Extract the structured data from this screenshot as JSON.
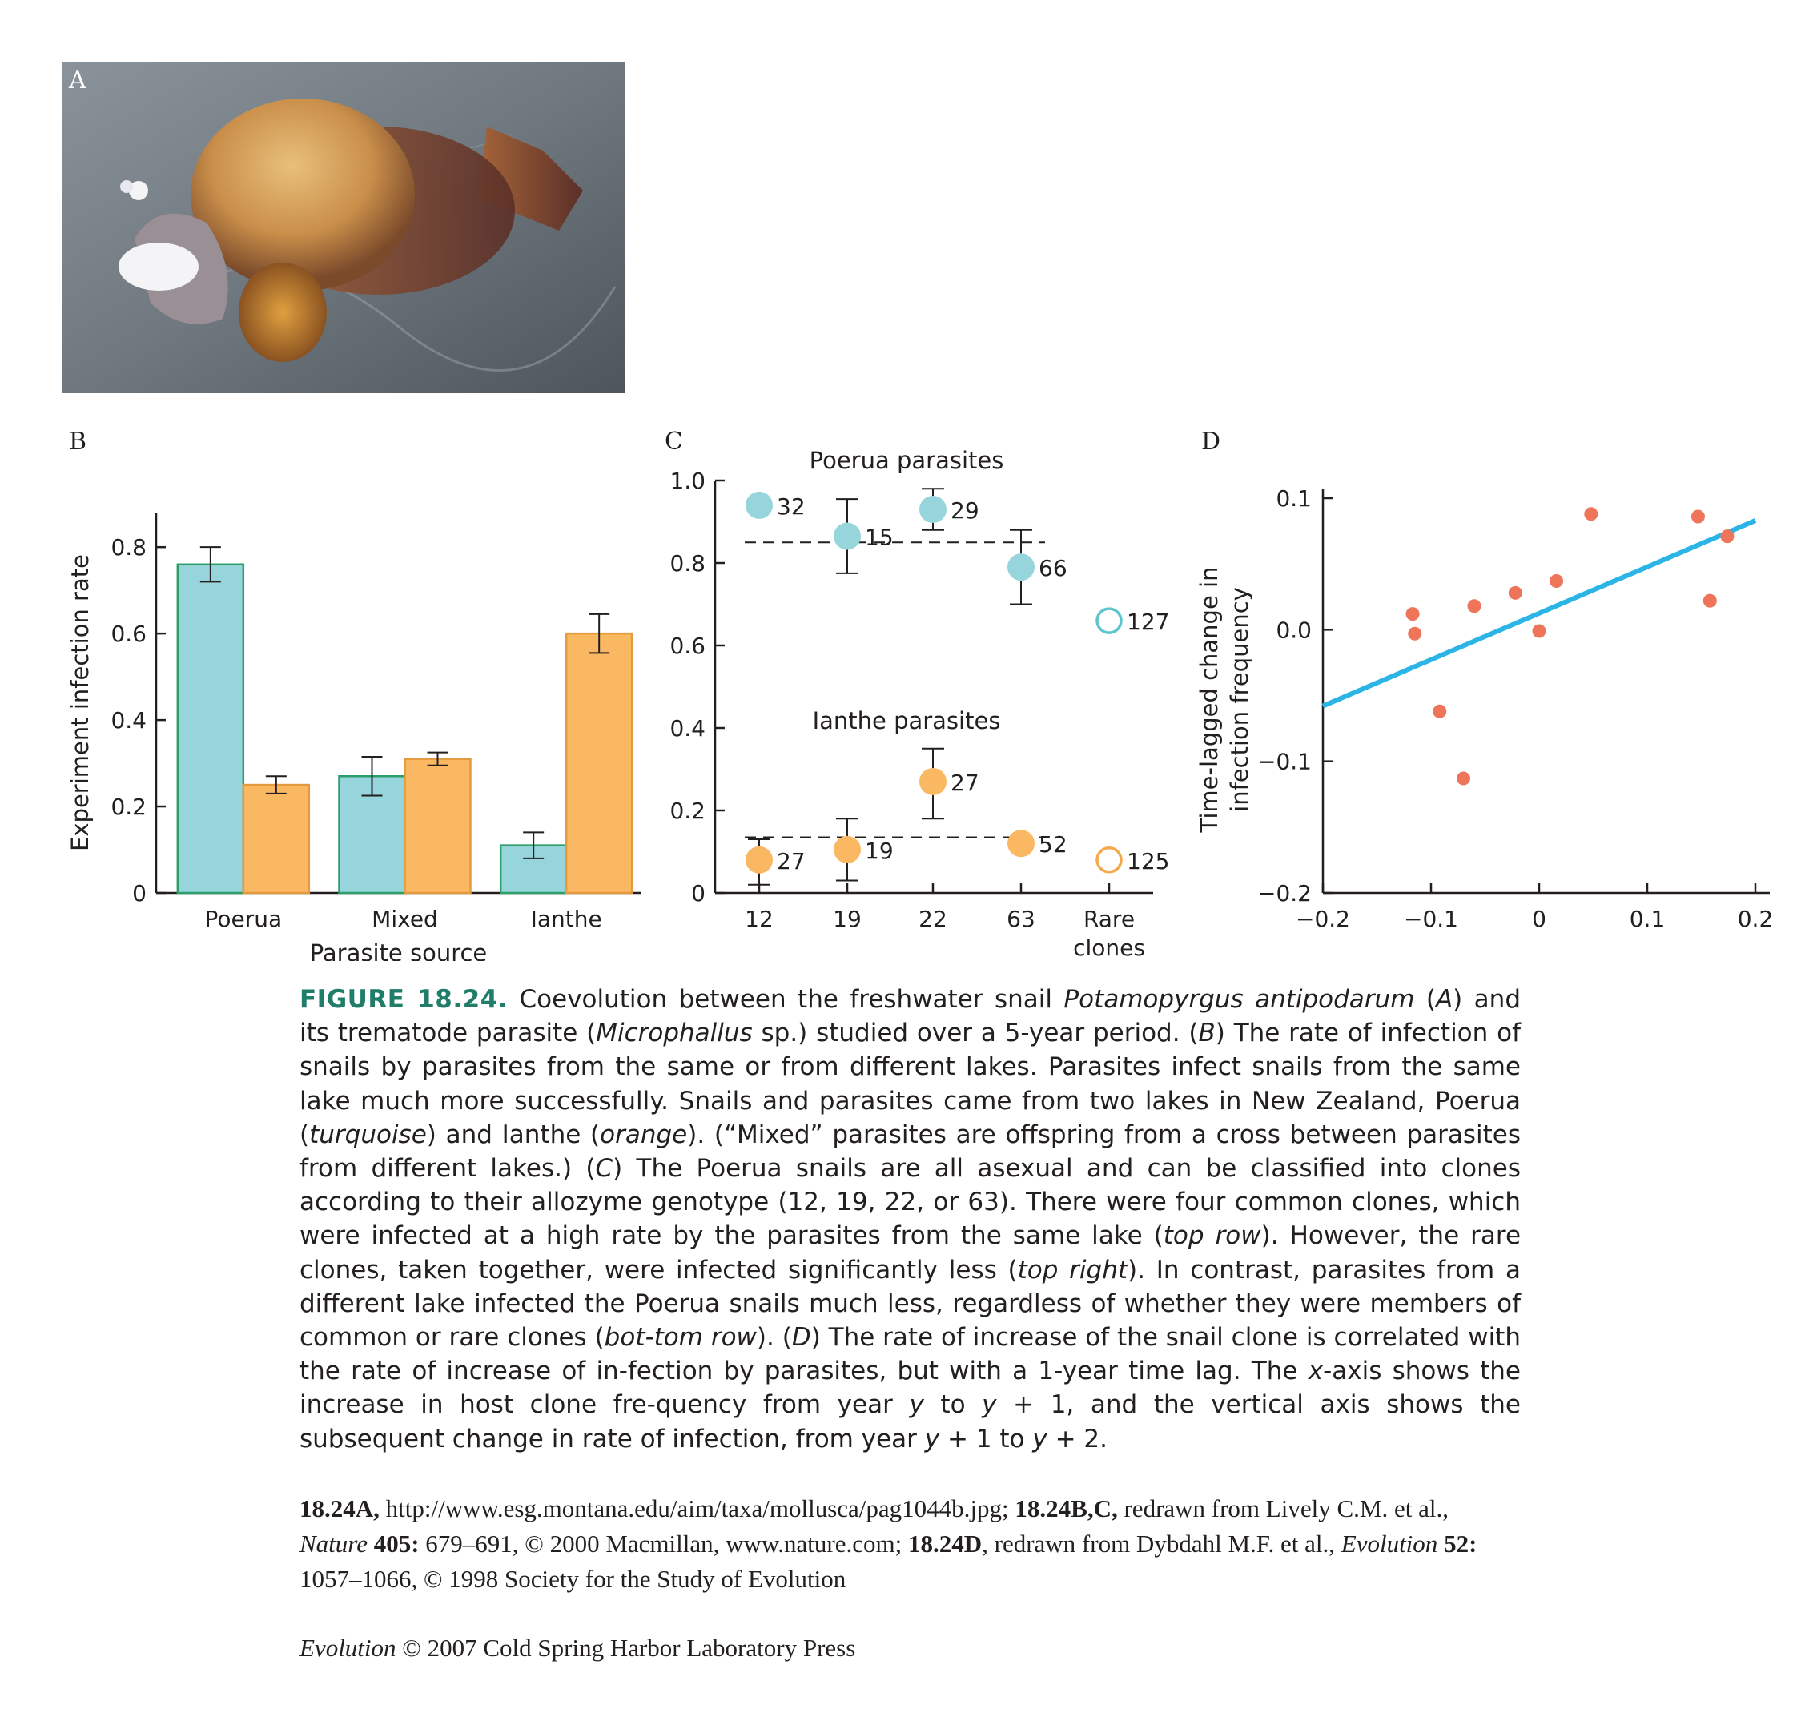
{
  "panels": {
    "a": "A",
    "b": "B",
    "c": "C",
    "d": "D"
  },
  "chart_data": [
    {
      "panel": "B",
      "type": "bar",
      "categories": [
        "Poerua",
        "Mixed",
        "Ianthe"
      ],
      "xlabel": "Parasite source",
      "ylabel": "Experiment infection rate",
      "ylim": [
        0,
        0.88
      ],
      "yticks": [
        "0",
        "0.2",
        "0.4",
        "0.6",
        "0.8"
      ],
      "series": [
        {
          "color": "#96d5db",
          "edge": "#2b9e6a",
          "values": [
            0.76,
            0.27,
            0.11
          ],
          "err": [
            0.04,
            0.045,
            0.03
          ]
        },
        {
          "color": "#fbb862",
          "edge": "#e39a3e",
          "values": [
            0.25,
            0.31,
            0.6
          ],
          "err": [
            0.02,
            0.015,
            0.045
          ]
        }
      ]
    },
    {
      "panel": "C",
      "type": "scatter",
      "categories": [
        "12",
        "19",
        "22",
        "63",
        "Rare clones"
      ],
      "ylim": [
        0,
        1.0
      ],
      "yticks": [
        "0",
        "0.2",
        "0.4",
        "0.6",
        "0.8",
        "1.0"
      ],
      "groups": [
        {
          "label": "Poerua parasites",
          "color": "#96d5db",
          "ring": "#5ec6cc",
          "mean_line": 0.85,
          "points": [
            {
              "x": "12",
              "y": 0.94,
              "n": "32",
              "err": null
            },
            {
              "x": "19",
              "y": 0.865,
              "n": "15",
              "err": [
                0.775,
                0.955
              ]
            },
            {
              "x": "22",
              "y": 0.93,
              "n": "29",
              "err": [
                0.88,
                0.98
              ]
            },
            {
              "x": "63",
              "y": 0.79,
              "n": "66",
              "err": [
                0.7,
                0.88
              ]
            },
            {
              "x": "Rare clones",
              "y": 0.66,
              "n": "127",
              "err": null,
              "open": true
            }
          ]
        },
        {
          "label": "Ianthe parasites",
          "color": "#fbb862",
          "ring": "#f4a94d",
          "mean_line": 0.135,
          "points": [
            {
              "x": "12",
              "y": 0.08,
              "n": "27",
              "err": [
                0.02,
                0.13
              ]
            },
            {
              "x": "19",
              "y": 0.105,
              "n": "19",
              "err": [
                0.03,
                0.18
              ]
            },
            {
              "x": "22",
              "y": 0.27,
              "n": "27",
              "err": [
                0.18,
                0.35
              ]
            },
            {
              "x": "63",
              "y": 0.12,
              "n": "52",
              "err": null
            },
            {
              "x": "Rare clones",
              "y": 0.08,
              "n": "125",
              "err": null,
              "open": true
            }
          ]
        }
      ]
    },
    {
      "panel": "D",
      "type": "scatter",
      "ylabel_lines": [
        "Time-lagged change in",
        "infection frequency"
      ],
      "xlim": [
        -0.2,
        0.2
      ],
      "ylim": [
        -0.2,
        0.1
      ],
      "xticks": [
        -0.2,
        -0.1,
        0,
        0.1,
        0.2
      ],
      "xtick_labels": [
        "−0.2",
        "−0.1",
        "0",
        "0.1",
        "0.2"
      ],
      "yticks": [
        0.1,
        0.0,
        -0.1,
        -0.2
      ],
      "ytick_labels": [
        "0.1",
        "0.0",
        "−0.1",
        "−0.2"
      ],
      "point_color": "#ee7559",
      "line_color": "#2ab5e6",
      "points": [
        [
          -0.117,
          0.012
        ],
        [
          -0.115,
          -0.003
        ],
        [
          -0.092,
          -0.062
        ],
        [
          -0.07,
          -0.113
        ],
        [
          -0.06,
          0.018
        ],
        [
          -0.022,
          0.028
        ],
        [
          0.0,
          -0.001
        ],
        [
          0.016,
          0.037
        ],
        [
          0.048,
          0.088
        ],
        [
          0.147,
          0.086
        ],
        [
          0.158,
          0.022
        ],
        [
          0.174,
          0.071
        ]
      ],
      "fit": [
        [
          -0.2,
          -0.058
        ],
        [
          0.2,
          0.083
        ]
      ]
    }
  ],
  "caption": {
    "label": "FIGURE 18.24.",
    "parts": [
      " Coevolution between the freshwater snail ",
      "Potamopyrgus antipodarum",
      " (",
      "A",
      ") and its trematode parasite (",
      "Microphallus",
      " sp.) studied over a 5-year period. (",
      "B",
      ") The rate of infection of snails by parasites from the same or from different lakes. Parasites infect snails from the same lake much more successfully. Snails and parasites came from two lakes in New Zealand, Poerua (",
      "turquoise",
      ") and Ianthe (",
      "orange",
      "). (“Mixed” parasites are offspring from a cross between parasites from different lakes.) (",
      "C",
      ") The Poerua snails are all asexual and can be classified into clones according to their allozyme genotype (12, 19, 22, or 63). There were four common clones, which were infected at a high rate by the parasites from the same lake (",
      "top row",
      "). However, the rare clones, taken together, were infected significantly less (",
      "top right",
      "). In contrast, parasites from a different lake infected the Poerua snails much less, regardless of whether they were members of common or rare clones (",
      "bot-tom row",
      "). (",
      "D",
      ") The rate of increase of the snail clone is correlated with the rate of increase of in-fection by parasites, but with a 1-year time lag. The ",
      "x",
      "-axis shows the increase in host clone fre-quency from year ",
      "y",
      " to ",
      "y",
      " + 1, and the vertical axis shows the subsequent change in rate of infection, from year ",
      "y",
      " + 1 to ",
      "y",
      " + 2."
    ]
  },
  "credits": {
    "a_ref": "18.24A,",
    "a_text": " http://www.esg.montana.edu/aim/taxa/mollusca/pag1044b.jpg; ",
    "bc_ref": "18.24B,C,",
    "bc_text": " redrawn from Lively C.M. et al., ",
    "bc_journal": "Nature",
    "bc_vol": " 405:",
    "bc_rest": " 679–691, © 2000 Macmillan, www.nature.com; ",
    "d_ref": "18.24D",
    "d_text": ", redrawn from Dybdahl M.F. et al., ",
    "d_journal": "Evolution",
    "d_vol": " 52:",
    "d_rest": " 1057–1066, © 1998 Society for the Study of Evolution"
  },
  "copyright": {
    "journal": "Evolution",
    "text": " © 2007 Cold Spring Harbor Laboratory Press"
  }
}
